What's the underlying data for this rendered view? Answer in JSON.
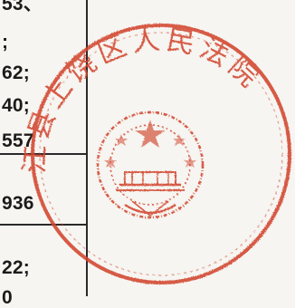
{
  "document": {
    "fragments": [
      "53、",
      ";",
      "62;",
      "40;",
      "557",
      "936",
      "22;",
      "0"
    ]
  },
  "stamp": {
    "text": "江县上饶区人民法院",
    "color": "#d2452e"
  }
}
